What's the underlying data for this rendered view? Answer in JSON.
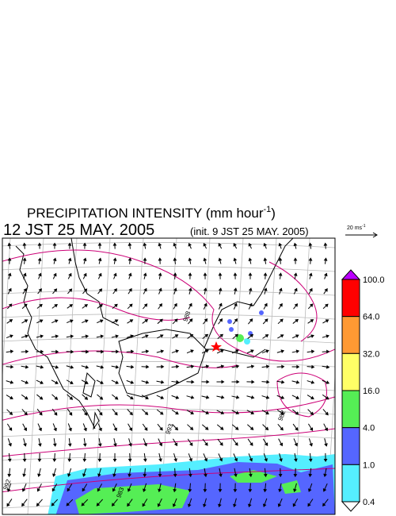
{
  "title": {
    "main": "PRECIPITATION INTENSITY (mm hour",
    "sup": "-1",
    "close": ")"
  },
  "subtitle": {
    "time": "12 JST 25 MAY. 2005",
    "init": "(init. 9 JST 25 MAY. 2005)"
  },
  "scale_arrow": {
    "label": "20 ms",
    "sup": "-1"
  },
  "contour_labels": [
    "988",
    "993",
    "982",
    "992",
    "983"
  ],
  "colorbar": {
    "labels": [
      "100.0",
      "64.0",
      "32.0",
      "16.0",
      "4.0",
      "1.0",
      "0.4"
    ],
    "colors": [
      "#ff0000",
      "#ff9933",
      "#ffff66",
      "#55ee55",
      "#5566ff",
      "#55eeff"
    ],
    "top_color": "#bb00ff",
    "bottom_color": "#ffffff"
  }
}
